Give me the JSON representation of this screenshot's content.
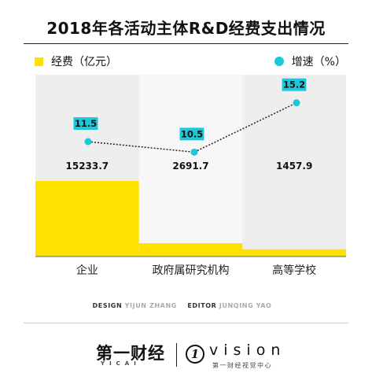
{
  "title": "2018年各活动主体R&D经费支出情况",
  "legend": {
    "bar_label": "经费（亿元）",
    "line_label": "增速（%）"
  },
  "colors": {
    "bar": "#FFE100",
    "line_marker": "#1EC8DB",
    "label_box": "#1EC8DB",
    "band_dark": "#EEEEEE",
    "band_light": "#F7F7F7"
  },
  "chart_data": {
    "type": "bar",
    "categories": [
      "企业",
      "政府属研究机构",
      "高等学校"
    ],
    "series": [
      {
        "name": "经费（亿元）",
        "type": "bar",
        "values": [
          15233.7,
          2691.7,
          1457.9
        ],
        "labels": [
          "15233.7",
          "2691.7",
          "1457.9"
        ]
      },
      {
        "name": "增速（%）",
        "type": "line",
        "values": [
          11.5,
          10.5,
          15.2
        ],
        "labels": [
          "11.5",
          "10.5",
          "15.2"
        ]
      }
    ],
    "bar_scale_max": 15233.7,
    "line_range": [
      10,
      16
    ],
    "grid": false,
    "legend_position": "top"
  },
  "credits": {
    "design_label": "DESIGN",
    "design_name": "YIJUN ZHANG",
    "editor_label": "EDITOR",
    "editor_name": "JUNQING YAO"
  },
  "footer": {
    "left_brand": "第一财经",
    "left_sub": "YICAI",
    "logo_mark": "1",
    "right_brand": "vision",
    "right_sub": "第一财经视觉中心"
  }
}
